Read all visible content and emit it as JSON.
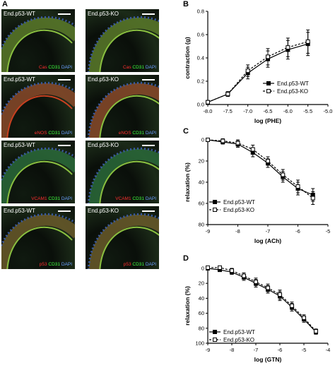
{
  "panel_labels": {
    "a": "A",
    "b": "B",
    "c": "C",
    "d": "D"
  },
  "micrographs": {
    "columns": [
      "End.p53-WT",
      "End.p53-KO"
    ],
    "rows": [
      {
        "marker": "Cas",
        "green": "CD31",
        "blue": "DAPI"
      },
      {
        "marker": "eNOS",
        "green": "CD31",
        "blue": "DAPI"
      },
      {
        "marker": "VCAM1",
        "green": "CD31",
        "blue": "DAPI"
      },
      {
        "marker": "p53",
        "green": "CD31",
        "blue": "DAPI"
      }
    ]
  },
  "chart_data": [
    {
      "type": "line",
      "panel": "B",
      "xlabel": "log (PHE)",
      "ylabel": "contraction (g)",
      "x": [
        -8.0,
        -7.5,
        -7.0,
        -6.5,
        -6.0,
        -5.5
      ],
      "xticks": [
        "-8.0",
        "-7.5",
        "-7.0",
        "-6.5",
        "-6.0",
        "-5.5",
        "-5.0"
      ],
      "yticks": [
        "0.0",
        "0.2",
        "0.4",
        "0.6",
        "0.8"
      ],
      "xlim": [
        -8.0,
        -5.0
      ],
      "ylim": [
        0.0,
        0.8
      ],
      "y_inverted": false,
      "legend_position": "lower-right",
      "series": [
        {
          "name": "End.p53-WT",
          "marker": "filled-square",
          "dash": "solid",
          "values": [
            0.02,
            0.09,
            0.27,
            0.39,
            0.47,
            0.52
          ],
          "errors": [
            0.01,
            0.02,
            0.05,
            0.07,
            0.08,
            0.1
          ]
        },
        {
          "name": "End.p53-KO",
          "marker": "open-square",
          "dash": "dashed",
          "values": [
            0.02,
            0.09,
            0.29,
            0.41,
            0.49,
            0.54
          ],
          "errors": [
            0.01,
            0.02,
            0.05,
            0.07,
            0.08,
            0.1
          ]
        }
      ]
    },
    {
      "type": "line",
      "panel": "C",
      "xlabel": "log (ACh)",
      "ylabel": "relaxation (%)",
      "x": [
        -9.0,
        -8.5,
        -8.0,
        -7.5,
        -7.0,
        -6.5,
        -6.0,
        -5.5
      ],
      "xticks": [
        "-9",
        "-8",
        "-7",
        "-6",
        "-5"
      ],
      "yticks": [
        "0",
        "20",
        "40",
        "60",
        "80"
      ],
      "xlim": [
        -9.0,
        -5.0
      ],
      "ylim": [
        0,
        80
      ],
      "y_inverted": true,
      "legend_position": "lower-left",
      "series": [
        {
          "name": "End.p53-WT",
          "marker": "filled-square",
          "dash": "solid",
          "values": [
            0,
            2,
            4,
            12,
            22,
            35,
            46,
            52
          ],
          "errors": [
            1,
            2,
            3,
            4,
            4,
            5,
            6,
            6
          ]
        },
        {
          "name": "End.p53-KO",
          "marker": "open-square",
          "dash": "dashed",
          "values": [
            0,
            1,
            3,
            9,
            20,
            33,
            44,
            55
          ],
          "errors": [
            1,
            2,
            3,
            4,
            4,
            5,
            6,
            6
          ]
        }
      ]
    },
    {
      "type": "line",
      "panel": "D",
      "xlabel": "log (GTN)",
      "ylabel": "relaxation (%)",
      "x": [
        -9.0,
        -8.5,
        -8.0,
        -7.5,
        -7.0,
        -6.5,
        -6.0,
        -5.5,
        -5.0,
        -4.5
      ],
      "xticks": [
        "-9",
        "-8",
        "-7",
        "-6",
        "-5",
        "-4"
      ],
      "yticks": [
        "0",
        "20",
        "40",
        "60",
        "80",
        "100"
      ],
      "xlim": [
        -9.0,
        -4.0
      ],
      "ylim": [
        0,
        100
      ],
      "y_inverted": true,
      "legend_position": "lower-left",
      "series": [
        {
          "name": "End.p53-WT",
          "marker": "filled-square",
          "dash": "solid",
          "values": [
            0,
            2,
            5,
            12,
            20,
            28,
            37,
            52,
            68,
            85
          ],
          "errors": [
            1,
            2,
            3,
            4,
            5,
            5,
            6,
            5,
            4,
            3
          ]
        },
        {
          "name": "End.p53-KO",
          "marker": "open-square",
          "dash": "dashed",
          "values": [
            -1,
            -1,
            3,
            10,
            18,
            26,
            35,
            50,
            66,
            84
          ],
          "errors": [
            1,
            2,
            3,
            4,
            5,
            5,
            6,
            5,
            4,
            3
          ]
        }
      ]
    }
  ]
}
